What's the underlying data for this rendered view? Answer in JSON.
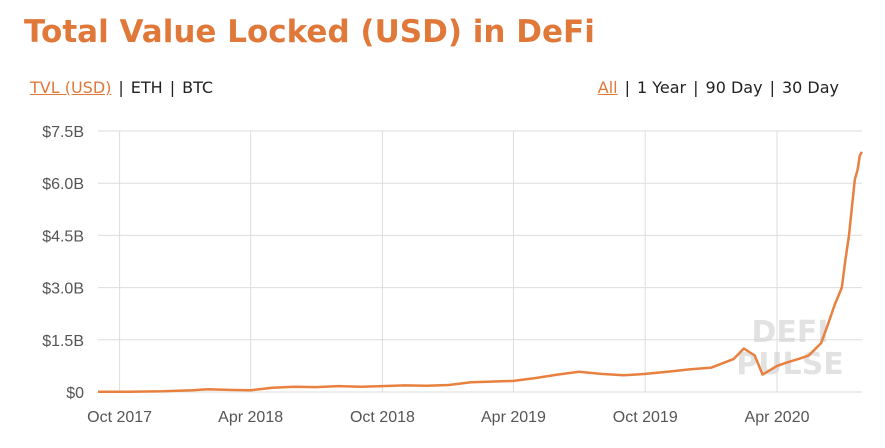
{
  "title": "Total Value Locked (USD) in DeFi",
  "metric_tabs": [
    {
      "label": "TVL (USD)",
      "active": true
    },
    {
      "label": "ETH",
      "active": false
    },
    {
      "label": "BTC",
      "active": false
    }
  ],
  "range_tabs": [
    {
      "label": "All",
      "active": true
    },
    {
      "label": "1 Year",
      "active": false
    },
    {
      "label": "90 Day",
      "active": false
    },
    {
      "label": "30 Day",
      "active": false
    }
  ],
  "watermark": [
    "DEFI",
    "PULSE"
  ],
  "colors": {
    "accent": "#e0783a",
    "line": "#e8803f",
    "grid": "#dddddd"
  },
  "chart_data": {
    "type": "line",
    "title": "Total Value Locked (USD) in DeFi",
    "xlabel": "",
    "ylabel": "",
    "ylim": [
      0,
      7.5
    ],
    "xlim": [
      "2017-09-01",
      "2020-07-28"
    ],
    "y_ticks": [
      0,
      1.5,
      3.0,
      4.5,
      6.0,
      7.5
    ],
    "y_tick_labels": [
      "$0",
      "$1.5B",
      "$3.0B",
      "$4.5B",
      "$6.0B",
      "$7.5B"
    ],
    "x_ticks": [
      "2017-10-01",
      "2018-04-01",
      "2018-10-01",
      "2019-04-01",
      "2019-10-01",
      "2020-04-01"
    ],
    "x_tick_labels": [
      "Oct 2017",
      "Apr 2018",
      "Oct 2018",
      "Apr 2019",
      "Oct 2019",
      "Apr 2020"
    ],
    "grid": true,
    "series": [
      {
        "values_unit": "USD billions",
        "points": [
          [
            "2017-09-01",
            0.01
          ],
          [
            "2017-10-15",
            0.01
          ],
          [
            "2017-12-01",
            0.02
          ],
          [
            "2018-01-10",
            0.05
          ],
          [
            "2018-02-01",
            0.08
          ],
          [
            "2018-03-01",
            0.06
          ],
          [
            "2018-04-01",
            0.05
          ],
          [
            "2018-05-01",
            0.12
          ],
          [
            "2018-06-01",
            0.15
          ],
          [
            "2018-07-01",
            0.14
          ],
          [
            "2018-08-01",
            0.17
          ],
          [
            "2018-09-01",
            0.15
          ],
          [
            "2018-10-01",
            0.17
          ],
          [
            "2018-11-01",
            0.19
          ],
          [
            "2018-12-01",
            0.18
          ],
          [
            "2019-01-01",
            0.2
          ],
          [
            "2019-02-01",
            0.28
          ],
          [
            "2019-03-01",
            0.3
          ],
          [
            "2019-04-01",
            0.32
          ],
          [
            "2019-05-01",
            0.4
          ],
          [
            "2019-06-01",
            0.5
          ],
          [
            "2019-07-01",
            0.58
          ],
          [
            "2019-08-01",
            0.52
          ],
          [
            "2019-09-01",
            0.48
          ],
          [
            "2019-10-01",
            0.52
          ],
          [
            "2019-11-01",
            0.58
          ],
          [
            "2019-12-01",
            0.65
          ],
          [
            "2020-01-01",
            0.7
          ],
          [
            "2020-02-01",
            0.95
          ],
          [
            "2020-02-15",
            1.25
          ],
          [
            "2020-03-01",
            1.05
          ],
          [
            "2020-03-12",
            0.5
          ],
          [
            "2020-03-20",
            0.6
          ],
          [
            "2020-04-01",
            0.75
          ],
          [
            "2020-04-15",
            0.85
          ],
          [
            "2020-05-01",
            0.95
          ],
          [
            "2020-05-15",
            1.05
          ],
          [
            "2020-06-01",
            1.4
          ],
          [
            "2020-06-10",
            1.9
          ],
          [
            "2020-06-20",
            2.5
          ],
          [
            "2020-06-30",
            3.0
          ],
          [
            "2020-07-05",
            3.8
          ],
          [
            "2020-07-10",
            4.5
          ],
          [
            "2020-07-15",
            5.5
          ],
          [
            "2020-07-18",
            6.1
          ],
          [
            "2020-07-22",
            6.4
          ],
          [
            "2020-07-25",
            6.8
          ],
          [
            "2020-07-28",
            6.9
          ]
        ]
      }
    ]
  }
}
